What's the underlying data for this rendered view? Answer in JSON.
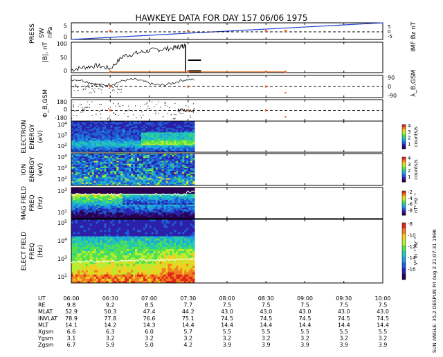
{
  "header": {
    "title": "HAWKEYE DATA FOR DAY 157 06/06 1975",
    "side_note": "2 21:07:31 1996",
    "side_note_prefix": "Fri Aug",
    "sun_angle": "SUN ANGLE:  35.2 DESPUN"
  },
  "colors": {
    "press_blue": "#1f3fd0",
    "imf_orange": "#e07020",
    "marker_orange": "#e8652a"
  },
  "panels": [
    {
      "id": "press",
      "ylabel": "PRESS",
      "ylabel2": "SW",
      "ylabel3": "nPa",
      "right_label": "IMF Bz nT",
      "ticks_left": [
        "5",
        "0"
      ],
      "ticks_right": [
        "5",
        "0",
        "-5"
      ]
    },
    {
      "id": "bmag",
      "ylabel": "|B|, nT",
      "ticks_left": [
        "100",
        "50",
        "0"
      ]
    },
    {
      "id": "lambda",
      "ylabel": "λ_B,GSM",
      "ticks_right": [
        "90",
        "0",
        "-90"
      ]
    },
    {
      "id": "phi",
      "ylabel": "Φ_B,GSM",
      "ticks_left": [
        "180",
        "0",
        "-180"
      ]
    },
    {
      "id": "electron",
      "ylabel": "ELECTRON",
      "ylabel2": "ENERGY",
      "ylabel3": "(eV)",
      "ticks_left": [
        "10^4",
        "10^3",
        "10^2"
      ],
      "cbar_ticks": [
        "4",
        "3",
        "2",
        "1"
      ],
      "cbar_label": "counts/s"
    },
    {
      "id": "ion",
      "ylabel": "ION",
      "ylabel2": "ENERGY",
      "ylabel3": "(eV)",
      "ticks_left": [
        "10^4",
        "10^3",
        "10^2"
      ],
      "cbar_ticks": [
        "4",
        "3",
        "2",
        "1"
      ],
      "cbar_label": "counts/s"
    },
    {
      "id": "mag",
      "ylabel": "MAG FIELD",
      "ylabel2": "FREQ",
      "ylabel3": "(Hz)",
      "ticks_left": [
        "10^3",
        "10^1"
      ],
      "cbar_ticks": [
        "-2",
        "-4",
        "-6",
        "-8"
      ],
      "cbar_label": "nT² Hz⁻¹"
    },
    {
      "id": "elect",
      "ylabel": "ELECT FIELD",
      "ylabel2": "FREQ",
      "ylabel3": "(Hz)",
      "ticks_left": [
        "10^5",
        "10^4",
        "10^3",
        "10^1"
      ],
      "cbar_ticks": [
        "-8",
        "-10",
        "-12",
        "-14",
        "-16"
      ],
      "cbar_label": "V² m⁻² Hz⁻¹"
    }
  ],
  "ephemeris": {
    "row_labels": [
      "UT",
      "RE",
      "MLAT",
      "INVLAT",
      "MLT",
      "Xgsm",
      "Ygsm",
      "Zgsm"
    ],
    "columns": [
      [
        "06:00",
        "9.8",
        "52.9",
        "78.9",
        "14.1",
        "6.6",
        "3.1",
        "6.7"
      ],
      [
        "06:30",
        "9.2",
        "50.3",
        "77.8",
        "14.2",
        "6.3",
        "3.2",
        "5.9"
      ],
      [
        "07:00",
        "8.5",
        "47.4",
        "76.6",
        "14.3",
        "6.0",
        "3.2",
        "5.0"
      ],
      [
        "07:30",
        "7.7",
        "44.2",
        "75.1",
        "14.4",
        "5.7",
        "3.2",
        "4.2"
      ],
      [
        "08:00",
        "7.5",
        "43.0",
        "74.5",
        "14.4",
        "5.5",
        "3.2",
        "3.9"
      ],
      [
        "08:30",
        "7.5",
        "43.0",
        "74.5",
        "14.4",
        "5.5",
        "3.2",
        "3.9"
      ],
      [
        "09:00",
        "7.5",
        "43.0",
        "74.5",
        "14.4",
        "5.5",
        "3.2",
        "3.9"
      ],
      [
        "09:30",
        "7.5",
        "43.0",
        "74.5",
        "14.4",
        "5.5",
        "3.2",
        "3.9"
      ],
      [
        "10:00",
        "7.5",
        "43.0",
        "74.5",
        "14.4",
        "5.5",
        "3.2",
        "3.9"
      ]
    ]
  },
  "chart_data": {
    "type": "line",
    "title": "HAWKEYE DATA FOR DAY 157 06/06 1975",
    "x_ticks": [
      "06:00",
      "06:30",
      "07:00",
      "07:30",
      "08:00",
      "08:30",
      "09:00",
      "09:30",
      "10:00"
    ],
    "data_end_time": "07:35",
    "series": [
      {
        "name": "|B|",
        "x": [
          "06:00",
          "06:10",
          "06:20",
          "06:30",
          "06:40",
          "06:50",
          "07:00",
          "07:10",
          "07:20",
          "07:25",
          "07:28"
        ],
        "values": [
          10,
          20,
          25,
          15,
          60,
          70,
          80,
          85,
          90,
          95,
          98
        ]
      },
      {
        "name": "IMF Bz",
        "x": [
          "06:30",
          "08:45"
        ],
        "values": [
          0,
          0
        ]
      }
    ],
    "ylim_bmag": [
      0,
      110
    ],
    "press_ylim": [
      0,
      6
    ],
    "press_line": {
      "x": [
        "06:00",
        "10:00"
      ],
      "values": [
        0,
        6
      ]
    }
  }
}
